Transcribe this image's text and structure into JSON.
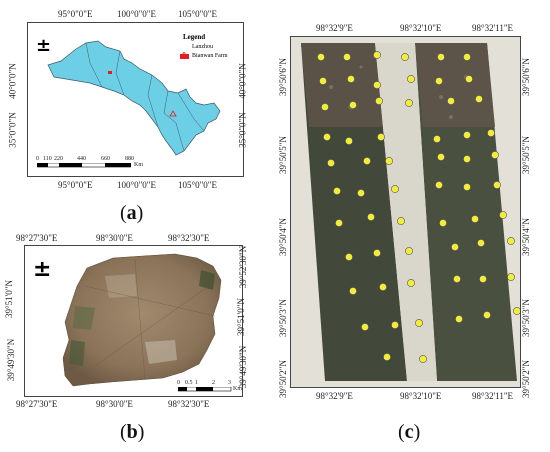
{
  "panel_a": {
    "label": "a",
    "top_ticks": [
      "95°0\"0\"E",
      "100°0\"0\"E",
      "105°0\"0\"E"
    ],
    "bottom_ticks": [
      "95°0\"0\"E",
      "100°0\"0\"E",
      "105°0\"0\"E"
    ],
    "left_ticks": [
      "40°0\"0\"N",
      "35°0\"0\"N"
    ],
    "right_ticks": [
      "40°0\"0\"N",
      "35°0\"0\"N"
    ],
    "legend_title": "Legend",
    "legend_items": [
      "Lanzhou",
      "Bianwan Farm"
    ],
    "scale_labels": [
      "0",
      "110",
      "220",
      "440",
      "660",
      "880"
    ],
    "scale_unit": "Km",
    "north_symbol": "±",
    "colors": {
      "region": "#6dcfe6",
      "farm": "#e02020"
    }
  },
  "panel_b": {
    "label": "b",
    "top_ticks": [
      "98°27'30\"E",
      "98°30'0\"E",
      "98°32'30\"E"
    ],
    "bottom_ticks": [
      "98°27'30\"E",
      "98°30'0\"E",
      "98°32'30\"E"
    ],
    "left_ticks": [
      "39°52'30\"N",
      "39°51'0\"N",
      "39°49'30\"N"
    ],
    "right_ticks": [
      "39°52'30\"N",
      "39°51'0\"N",
      "39°49'30\"N"
    ],
    "scale_labels": [
      "0",
      "0.5",
      "1",
      "2",
      "3"
    ],
    "scale_unit": "Km",
    "north_symbol": "±"
  },
  "panel_c": {
    "label": "c",
    "top_ticks": [
      "98°32'9\"E",
      "98°32'10\"E",
      "98°32'11\"E"
    ],
    "bottom_ticks": [
      "98°32'9\"E",
      "98°32'10\"E",
      "98°32'11\"E"
    ],
    "left_ticks": [
      "39°50'6\"N",
      "39°50'5\"N",
      "39°50'4\"N",
      "39°50'3\"N",
      "39°50'2\"N"
    ],
    "right_ticks": [
      "39°50'6\"N",
      "39°50'5\"N",
      "39°50'4\"N",
      "39°50'3\"N",
      "39°50'2\"N"
    ],
    "colors": {
      "sample_point": "#f2ec3a"
    }
  }
}
